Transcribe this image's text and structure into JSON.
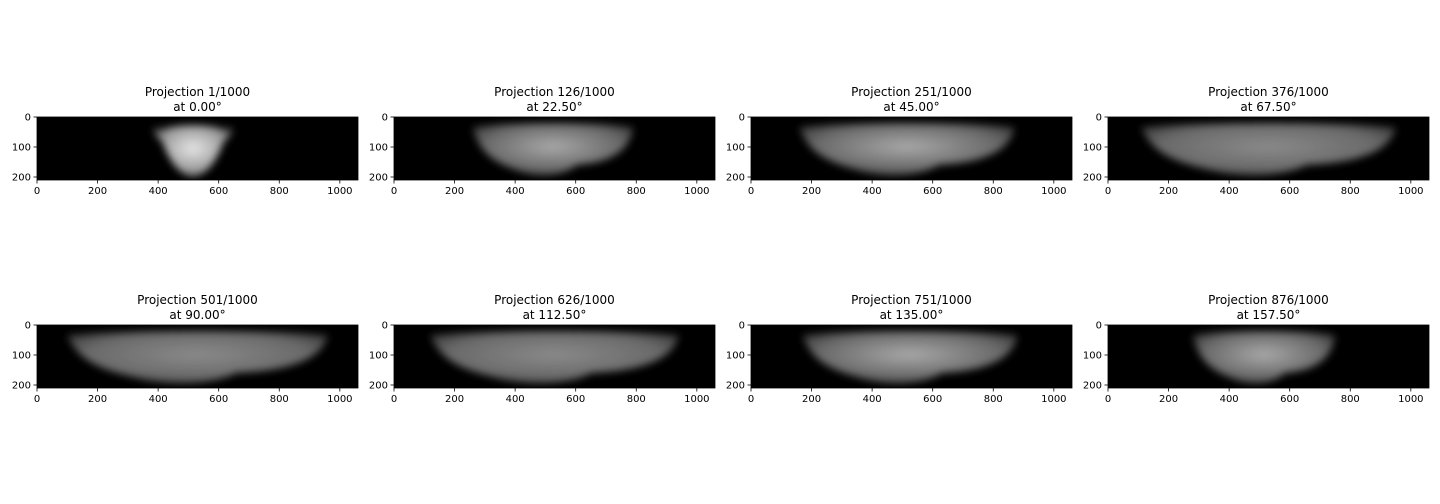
{
  "chart_data": [
    {
      "type": "heatmap",
      "title_line1": "Projection 1/1000",
      "title_line2": "at 0.00°",
      "xlim": [
        0,
        1060
      ],
      "ylim": [
        0,
        210
      ],
      "xticks": [
        0,
        200,
        400,
        600,
        800,
        1000
      ],
      "yticks": [
        0,
        100,
        200
      ],
      "colormap": "gray",
      "body": {
        "x_from": 370,
        "x_to": 660,
        "view": "end-on"
      }
    },
    {
      "type": "heatmap",
      "title_line1": "Projection 126/1000",
      "title_line2": "at 22.50°",
      "xlim": [
        0,
        1060
      ],
      "ylim": [
        0,
        210
      ],
      "xticks": [
        0,
        200,
        400,
        600,
        800,
        1000
      ],
      "yticks": [
        0,
        100,
        200
      ],
      "colormap": "gray",
      "body": {
        "x_from": 260,
        "x_to": 790,
        "view": "oblique"
      }
    },
    {
      "type": "heatmap",
      "title_line1": "Projection 251/1000",
      "title_line2": "at 45.00°",
      "xlim": [
        0,
        1060
      ],
      "ylim": [
        0,
        210
      ],
      "xticks": [
        0,
        200,
        400,
        600,
        800,
        1000
      ],
      "yticks": [
        0,
        100,
        200
      ],
      "colormap": "gray",
      "body": {
        "x_from": 160,
        "x_to": 870,
        "view": "oblique"
      }
    },
    {
      "type": "heatmap",
      "title_line1": "Projection 376/1000",
      "title_line2": "at 67.50°",
      "xlim": [
        0,
        1060
      ],
      "ylim": [
        0,
        210
      ],
      "xticks": [
        0,
        200,
        400,
        600,
        800,
        1000
      ],
      "yticks": [
        0,
        100,
        200
      ],
      "colormap": "gray",
      "body": {
        "x_from": 110,
        "x_to": 950,
        "view": "side"
      }
    },
    {
      "type": "heatmap",
      "title_line1": "Projection 501/1000",
      "title_line2": "at 90.00°",
      "xlim": [
        0,
        1060
      ],
      "ylim": [
        0,
        210
      ],
      "xticks": [
        0,
        200,
        400,
        600,
        800,
        1000
      ],
      "yticks": [
        0,
        100,
        200
      ],
      "colormap": "gray",
      "body": {
        "x_from": 100,
        "x_to": 960,
        "view": "side"
      }
    },
    {
      "type": "heatmap",
      "title_line1": "Projection 626/1000",
      "title_line2": "at 112.50°",
      "xlim": [
        0,
        1060
      ],
      "ylim": [
        0,
        210
      ],
      "xticks": [
        0,
        200,
        400,
        600,
        800,
        1000
      ],
      "yticks": [
        0,
        100,
        200
      ],
      "colormap": "gray",
      "body": {
        "x_from": 120,
        "x_to": 940,
        "view": "side"
      }
    },
    {
      "type": "heatmap",
      "title_line1": "Projection 751/1000",
      "title_line2": "at 135.00°",
      "xlim": [
        0,
        1060
      ],
      "ylim": [
        0,
        210
      ],
      "xticks": [
        0,
        200,
        400,
        600,
        800,
        1000
      ],
      "yticks": [
        0,
        100,
        200
      ],
      "colormap": "gray",
      "body": {
        "x_from": 170,
        "x_to": 880,
        "view": "oblique"
      }
    },
    {
      "type": "heatmap",
      "title_line1": "Projection 876/1000",
      "title_line2": "at 157.50°",
      "xlim": [
        0,
        1060
      ],
      "ylim": [
        0,
        210
      ],
      "xticks": [
        0,
        200,
        400,
        600,
        800,
        1000
      ],
      "yticks": [
        0,
        100,
        200
      ],
      "colormap": "gray",
      "body": {
        "x_from": 280,
        "x_to": 750,
        "view": "oblique"
      }
    }
  ]
}
